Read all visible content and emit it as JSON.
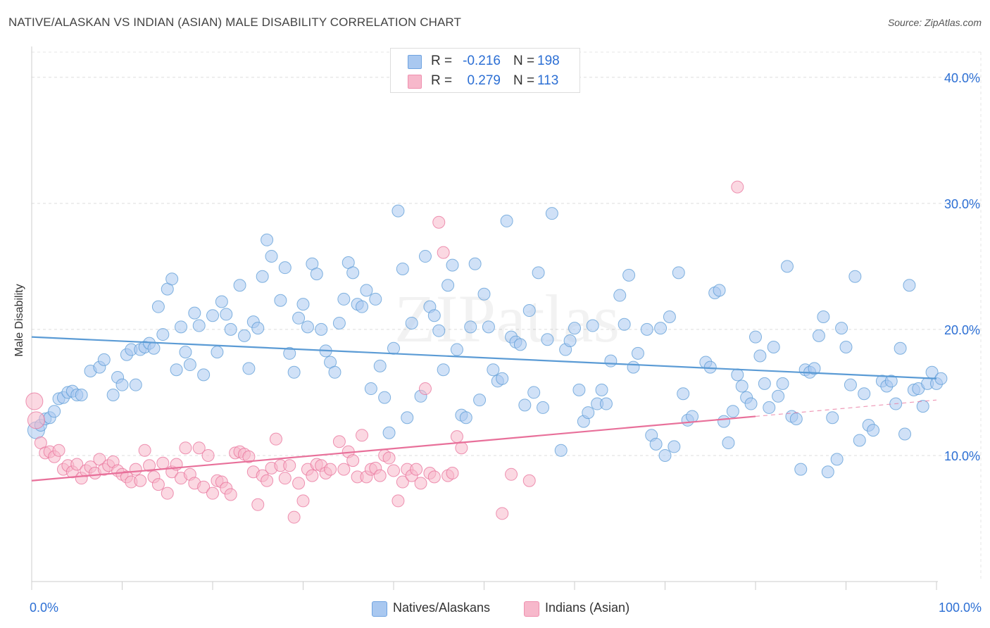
{
  "header": {
    "title": "NATIVE/ALASKAN VS INDIAN (ASIAN) MALE DISABILITY CORRELATION CHART",
    "source": "Source: ZipAtlas.com"
  },
  "watermark": "ZIPatlas",
  "legend_top": {
    "rows": [
      {
        "r_label": "R = ",
        "r_value": "-0.216",
        "n_label": "N = ",
        "n_value": "198",
        "color": "#a9c8f0"
      },
      {
        "r_label": "R = ",
        "r_value": "0.279",
        "n_label": "N = ",
        "n_value": "113",
        "color": "#f7b8cb"
      }
    ]
  },
  "legend_bottom": {
    "items": [
      {
        "label": "Natives/Alaskans",
        "color": "#a9c8f0"
      },
      {
        "label": "Indians (Asian)",
        "color": "#f7b8cb"
      }
    ]
  },
  "chart_data": {
    "type": "scatter",
    "title": "NATIVE/ALASKAN VS INDIAN (ASIAN) MALE DISABILITY CORRELATION CHART",
    "ylabel": "Male Disability",
    "xlabel": "",
    "x_tick_labels": [
      "0.0%",
      "100.0%"
    ],
    "y_tick_labels": [
      "10.0%",
      "20.0%",
      "30.0%",
      "40.0%"
    ],
    "xlim": [
      0,
      100
    ],
    "ylim": [
      0,
      42
    ],
    "y_ticks": [
      10,
      20,
      30,
      40
    ],
    "grid": true,
    "legend": "top-center",
    "series": [
      {
        "name": "Natives/Alaskans",
        "color": "#5b9bd5",
        "fill": "#a9c8f0",
        "trend": {
          "x0": 0,
          "y0": 19.4,
          "x1": 100,
          "y1": 16.1
        },
        "points": [
          [
            0.5,
            12.0
          ],
          [
            1.0,
            12.4
          ],
          [
            1.5,
            12.9
          ],
          [
            2.0,
            13.0
          ],
          [
            2.5,
            13.5
          ],
          [
            3.0,
            14.5
          ],
          [
            3.5,
            14.6
          ],
          [
            4.0,
            15.0
          ],
          [
            4.5,
            15.1
          ],
          [
            5.0,
            14.8
          ],
          [
            5.5,
            14.8
          ],
          [
            6.5,
            16.7
          ],
          [
            7.5,
            17.0
          ],
          [
            8.0,
            17.6
          ],
          [
            9.0,
            14.8
          ],
          [
            9.5,
            16.2
          ],
          [
            10.0,
            15.6
          ],
          [
            10.5,
            18.0
          ],
          [
            11.0,
            18.4
          ],
          [
            11.5,
            15.6
          ],
          [
            12.0,
            18.4
          ],
          [
            12.5,
            18.6
          ],
          [
            13.0,
            18.9
          ],
          [
            13.5,
            18.5
          ],
          [
            14.0,
            21.8
          ],
          [
            14.5,
            19.6
          ],
          [
            15.0,
            23.2
          ],
          [
            15.5,
            24.0
          ],
          [
            16.0,
            16.8
          ],
          [
            16.5,
            20.2
          ],
          [
            17.0,
            18.2
          ],
          [
            17.5,
            17.2
          ],
          [
            18.0,
            21.3
          ],
          [
            18.5,
            20.3
          ],
          [
            19.0,
            16.4
          ],
          [
            20.0,
            21.1
          ],
          [
            20.5,
            18.2
          ],
          [
            21.0,
            22.2
          ],
          [
            21.5,
            21.2
          ],
          [
            22.0,
            20.0
          ],
          [
            23.0,
            23.5
          ],
          [
            23.5,
            19.5
          ],
          [
            24.0,
            16.9
          ],
          [
            24.5,
            20.6
          ],
          [
            25.0,
            20.1
          ],
          [
            25.5,
            24.2
          ],
          [
            26.0,
            27.1
          ],
          [
            26.5,
            25.8
          ],
          [
            27.5,
            22.3
          ],
          [
            28.0,
            24.9
          ],
          [
            28.5,
            18.1
          ],
          [
            29.0,
            16.6
          ],
          [
            29.5,
            20.9
          ],
          [
            30.0,
            22.0
          ],
          [
            30.5,
            20.2
          ],
          [
            31.0,
            25.2
          ],
          [
            31.5,
            24.4
          ],
          [
            32.0,
            20.0
          ],
          [
            32.5,
            18.3
          ],
          [
            33.0,
            17.4
          ],
          [
            33.5,
            16.6
          ],
          [
            34.0,
            20.5
          ],
          [
            34.5,
            22.4
          ],
          [
            35.0,
            25.3
          ],
          [
            35.5,
            24.5
          ],
          [
            36.0,
            22.0
          ],
          [
            36.5,
            21.8
          ],
          [
            37.0,
            23.1
          ],
          [
            37.5,
            15.3
          ],
          [
            38.0,
            22.4
          ],
          [
            38.5,
            17.1
          ],
          [
            39.0,
            14.6
          ],
          [
            39.5,
            11.8
          ],
          [
            40.0,
            18.5
          ],
          [
            40.5,
            29.4
          ],
          [
            41.0,
            24.8
          ],
          [
            41.5,
            13.0
          ],
          [
            42.0,
            20.5
          ],
          [
            43.0,
            14.7
          ],
          [
            43.5,
            25.8
          ],
          [
            44.0,
            21.8
          ],
          [
            44.5,
            21.1
          ],
          [
            45.0,
            19.9
          ],
          [
            45.5,
            16.8
          ],
          [
            46.0,
            23.5
          ],
          [
            46.5,
            25.1
          ],
          [
            47.0,
            18.4
          ],
          [
            47.5,
            13.2
          ],
          [
            48.0,
            13.0
          ],
          [
            48.5,
            20.2
          ],
          [
            49.0,
            25.2
          ],
          [
            49.5,
            14.4
          ],
          [
            50.0,
            22.8
          ],
          [
            50.5,
            20.2
          ],
          [
            51.0,
            16.8
          ],
          [
            51.5,
            15.9
          ],
          [
            52.0,
            16.1
          ],
          [
            52.5,
            28.6
          ],
          [
            53.0,
            19.4
          ],
          [
            53.5,
            19.0
          ],
          [
            54.0,
            18.8
          ],
          [
            54.5,
            14.0
          ],
          [
            55.0,
            21.5
          ],
          [
            55.5,
            15.0
          ],
          [
            56.0,
            24.5
          ],
          [
            56.5,
            13.8
          ],
          [
            57.0,
            19.2
          ],
          [
            57.5,
            29.2
          ],
          [
            58.5,
            10.4
          ],
          [
            59.0,
            18.4
          ],
          [
            59.5,
            19.1
          ],
          [
            60.0,
            20.1
          ],
          [
            60.5,
            15.2
          ],
          [
            61.0,
            12.7
          ],
          [
            61.5,
            13.4
          ],
          [
            62.0,
            20.3
          ],
          [
            62.5,
            14.1
          ],
          [
            63.0,
            15.2
          ],
          [
            63.5,
            14.1
          ],
          [
            64.0,
            17.5
          ],
          [
            65.0,
            22.7
          ],
          [
            65.5,
            20.4
          ],
          [
            66.0,
            24.3
          ],
          [
            66.5,
            17.0
          ],
          [
            67.0,
            18.1
          ],
          [
            68.0,
            20.0
          ],
          [
            68.5,
            11.6
          ],
          [
            69.0,
            10.9
          ],
          [
            69.5,
            20.1
          ],
          [
            70.0,
            10.0
          ],
          [
            70.5,
            21.0
          ],
          [
            71.0,
            10.7
          ],
          [
            71.5,
            24.5
          ],
          [
            72.0,
            14.9
          ],
          [
            72.5,
            12.8
          ],
          [
            73.0,
            13.1
          ],
          [
            74.5,
            17.4
          ],
          [
            75.0,
            17.0
          ],
          [
            75.5,
            22.9
          ],
          [
            76.0,
            23.1
          ],
          [
            76.5,
            12.7
          ],
          [
            77.0,
            11.0
          ],
          [
            77.5,
            13.5
          ],
          [
            78.0,
            16.4
          ],
          [
            78.5,
            15.5
          ],
          [
            79.0,
            14.6
          ],
          [
            79.5,
            14.1
          ],
          [
            80.0,
            19.4
          ],
          [
            80.5,
            17.9
          ],
          [
            81.0,
            15.7
          ],
          [
            81.5,
            13.8
          ],
          [
            82.0,
            18.6
          ],
          [
            82.5,
            14.7
          ],
          [
            83.0,
            15.7
          ],
          [
            83.5,
            25.0
          ],
          [
            84.0,
            13.1
          ],
          [
            84.5,
            12.9
          ],
          [
            85.0,
            8.9
          ],
          [
            85.5,
            16.8
          ],
          [
            86.0,
            16.6
          ],
          [
            86.5,
            16.9
          ],
          [
            87.0,
            19.5
          ],
          [
            87.5,
            21.0
          ],
          [
            88.0,
            8.7
          ],
          [
            88.5,
            13.0
          ],
          [
            89.0,
            9.7
          ],
          [
            89.5,
            20.1
          ],
          [
            90.0,
            18.6
          ],
          [
            90.5,
            15.6
          ],
          [
            91.0,
            24.2
          ],
          [
            91.5,
            11.2
          ],
          [
            92.0,
            14.9
          ],
          [
            92.5,
            12.4
          ],
          [
            93.0,
            12.0
          ],
          [
            94.0,
            15.9
          ],
          [
            94.5,
            15.5
          ],
          [
            95.0,
            15.9
          ],
          [
            95.5,
            14.1
          ],
          [
            96.0,
            18.5
          ],
          [
            96.5,
            11.7
          ],
          [
            97.0,
            23.5
          ],
          [
            97.5,
            15.2
          ],
          [
            98.0,
            15.3
          ],
          [
            98.5,
            13.9
          ],
          [
            99.0,
            15.7
          ],
          [
            99.5,
            16.6
          ],
          [
            100.0,
            15.7
          ],
          [
            100.5,
            16.1
          ]
        ]
      },
      {
        "name": "Indians (Asian)",
        "color": "#e8709a",
        "fill": "#f7b8cb",
        "trend": {
          "x0": 0,
          "y0": 8.0,
          "x1": 80,
          "y1": 13.1,
          "dash_to_x": 100,
          "dash_to_y": 14.4
        },
        "points": [
          [
            0.3,
            14.3
          ],
          [
            0.5,
            12.8
          ],
          [
            1.0,
            11.0
          ],
          [
            1.5,
            10.2
          ],
          [
            2.0,
            10.3
          ],
          [
            2.5,
            9.9
          ],
          [
            3.0,
            10.4
          ],
          [
            3.5,
            8.9
          ],
          [
            4.0,
            9.2
          ],
          [
            4.5,
            8.7
          ],
          [
            5.0,
            9.3
          ],
          [
            5.5,
            8.2
          ],
          [
            6.0,
            8.8
          ],
          [
            6.5,
            9.1
          ],
          [
            7.0,
            8.6
          ],
          [
            7.5,
            9.7
          ],
          [
            8.0,
            8.9
          ],
          [
            8.5,
            9.2
          ],
          [
            9.0,
            9.5
          ],
          [
            9.5,
            8.8
          ],
          [
            10.0,
            8.5
          ],
          [
            10.5,
            8.3
          ],
          [
            11.0,
            7.9
          ],
          [
            11.5,
            8.9
          ],
          [
            12.0,
            8.0
          ],
          [
            12.5,
            10.4
          ],
          [
            13.0,
            9.2
          ],
          [
            13.5,
            8.3
          ],
          [
            14.0,
            7.7
          ],
          [
            14.5,
            9.4
          ],
          [
            15.0,
            7.0
          ],
          [
            15.5,
            8.7
          ],
          [
            16.0,
            9.3
          ],
          [
            16.5,
            8.2
          ],
          [
            17.0,
            10.6
          ],
          [
            17.5,
            8.5
          ],
          [
            18.0,
            7.8
          ],
          [
            18.5,
            10.6
          ],
          [
            19.0,
            7.5
          ],
          [
            19.5,
            10.0
          ],
          [
            20.0,
            7.0
          ],
          [
            20.5,
            8.0
          ],
          [
            21.0,
            7.9
          ],
          [
            21.5,
            7.4
          ],
          [
            22.0,
            6.9
          ],
          [
            22.5,
            10.2
          ],
          [
            23.0,
            10.3
          ],
          [
            23.5,
            10.1
          ],
          [
            24.0,
            9.9
          ],
          [
            24.5,
            8.7
          ],
          [
            25.0,
            6.1
          ],
          [
            25.5,
            8.4
          ],
          [
            26.0,
            8.0
          ],
          [
            26.5,
            9.0
          ],
          [
            27.0,
            11.3
          ],
          [
            27.5,
            9.2
          ],
          [
            28.0,
            8.2
          ],
          [
            28.5,
            9.2
          ],
          [
            29.0,
            5.1
          ],
          [
            29.5,
            7.8
          ],
          [
            30.0,
            6.4
          ],
          [
            30.5,
            8.9
          ],
          [
            31.0,
            8.4
          ],
          [
            31.5,
            9.3
          ],
          [
            32.0,
            9.2
          ],
          [
            32.5,
            8.6
          ],
          [
            33.0,
            8.9
          ],
          [
            34.0,
            11.1
          ],
          [
            34.5,
            8.9
          ],
          [
            35.0,
            10.3
          ],
          [
            35.5,
            9.6
          ],
          [
            36.0,
            8.3
          ],
          [
            36.5,
            11.6
          ],
          [
            37.0,
            8.3
          ],
          [
            37.5,
            8.9
          ],
          [
            38.0,
            9.0
          ],
          [
            38.5,
            8.4
          ],
          [
            39.0,
            10.0
          ],
          [
            39.5,
            9.8
          ],
          [
            40.0,
            8.8
          ],
          [
            40.5,
            6.4
          ],
          [
            41.0,
            7.9
          ],
          [
            41.5,
            8.9
          ],
          [
            42.0,
            8.4
          ],
          [
            42.5,
            8.9
          ],
          [
            43.0,
            7.8
          ],
          [
            43.5,
            15.3
          ],
          [
            44.0,
            8.6
          ],
          [
            44.5,
            8.3
          ],
          [
            45.0,
            28.5
          ],
          [
            45.5,
            26.1
          ],
          [
            46.0,
            8.4
          ],
          [
            46.5,
            8.6
          ],
          [
            47.0,
            11.5
          ],
          [
            47.5,
            10.6
          ],
          [
            52.0,
            5.4
          ],
          [
            53.0,
            8.5
          ],
          [
            55.0,
            8.0
          ],
          [
            78.0,
            31.3
          ]
        ]
      }
    ]
  }
}
